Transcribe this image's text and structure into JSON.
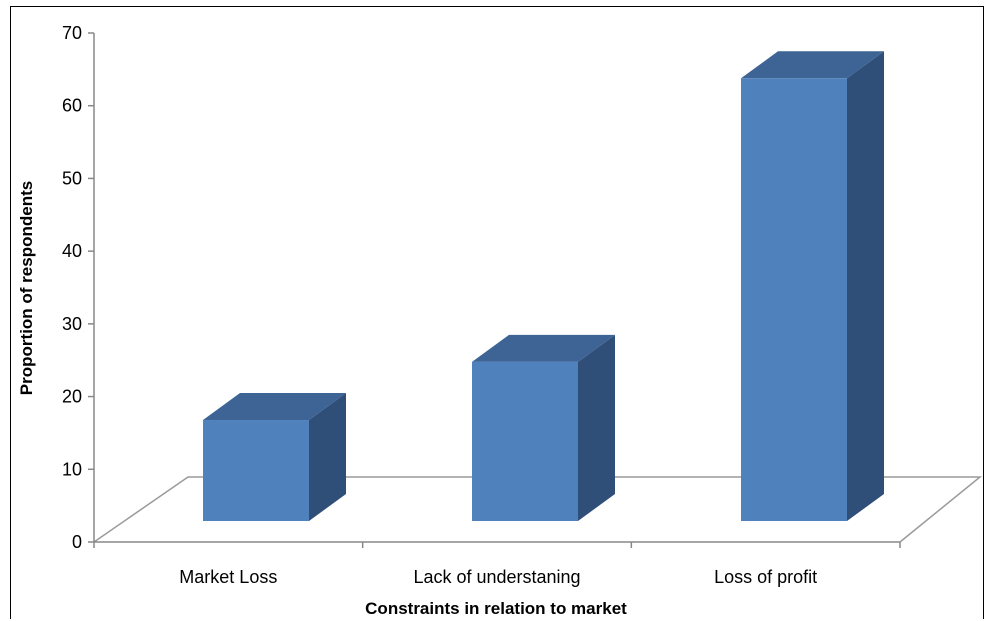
{
  "chart_data": {
    "type": "bar",
    "title": "",
    "xlabel": "Constraints in relation to market",
    "ylabel": "Proportion of respondents",
    "categories": [
      "Market Loss",
      "Lack of understaning",
      "Loss of profit"
    ],
    "values": [
      16.5,
      24.5,
      63.5
    ],
    "ylim": [
      0,
      70
    ],
    "yticks": [
      0,
      10,
      20,
      30,
      40,
      50,
      60,
      70
    ],
    "grid": false,
    "legend": "none",
    "bar_style": "3d",
    "colors": {
      "front": "#4f81bd",
      "side": "#2f4f78",
      "top": "#3d6494"
    }
  }
}
